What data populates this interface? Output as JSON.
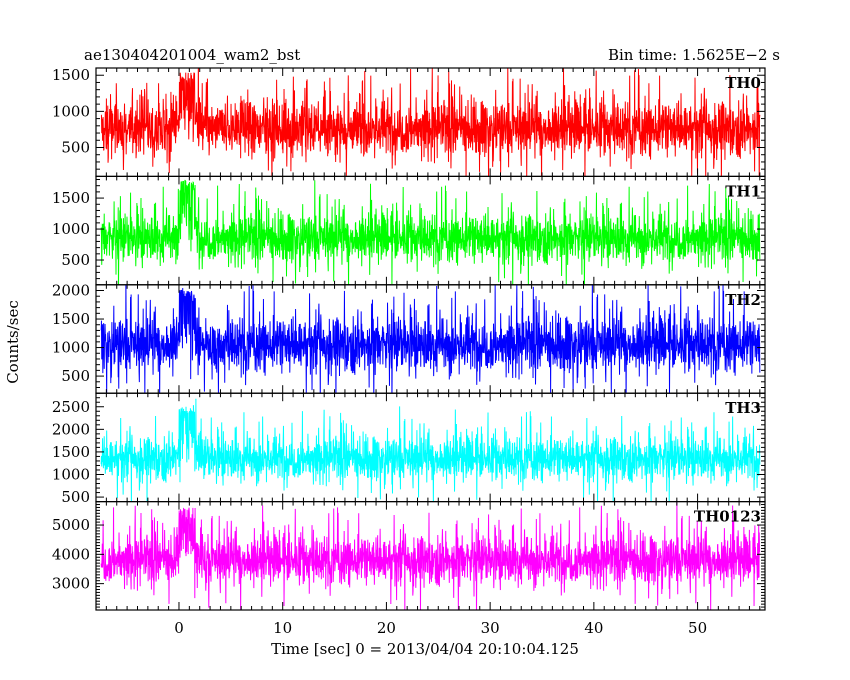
{
  "header": {
    "left_title": "ae130404201004_wam2_bst",
    "right_title": "Bin time: 1.5625E−2 s"
  },
  "chart_data": {
    "type": "line",
    "xlabel": "Time [sec] 0 = 2013/04/04 20:10:04.125",
    "ylabel": "Counts/sec",
    "x_ticks": [
      0,
      10,
      20,
      30,
      40,
      50
    ],
    "xlim": [
      -8,
      56.5
    ],
    "data_x_range": [
      -7.5,
      56
    ],
    "bin_time_s": 0.015625,
    "grid": false,
    "panels": [
      {
        "name": "TH0",
        "color": "#ff0000",
        "ylim": [
          100,
          1600
        ],
        "y_ticks": [
          500,
          1000,
          1500
        ],
        "baseline": 760,
        "spread": 330,
        "burst_peak": 1550
      },
      {
        "name": "TH1",
        "color": "#00ff00",
        "ylim": [
          100,
          1850
        ],
        "y_ticks": [
          500,
          1000,
          1500
        ],
        "baseline": 850,
        "spread": 340,
        "burst_peak": 1800
      },
      {
        "name": "TH2",
        "color": "#0000ff",
        "ylim": [
          200,
          2100
        ],
        "y_ticks": [
          500,
          1000,
          1500,
          2000
        ],
        "baseline": 1050,
        "spread": 420,
        "burst_peak": 2050
      },
      {
        "name": "TH3",
        "color": "#00ffff",
        "ylim": [
          400,
          2800
        ],
        "y_ticks": [
          500,
          1000,
          1500,
          2000,
          2500
        ],
        "baseline": 1350,
        "spread": 420,
        "burst_peak": 2550
      },
      {
        "name": "TH0123",
        "color": "#ff00ff",
        "ylim": [
          2100,
          5800
        ],
        "y_ticks": [
          3000,
          4000,
          5000
        ],
        "baseline": 3800,
        "spread": 720,
        "burst_peak": 5600
      }
    ]
  }
}
